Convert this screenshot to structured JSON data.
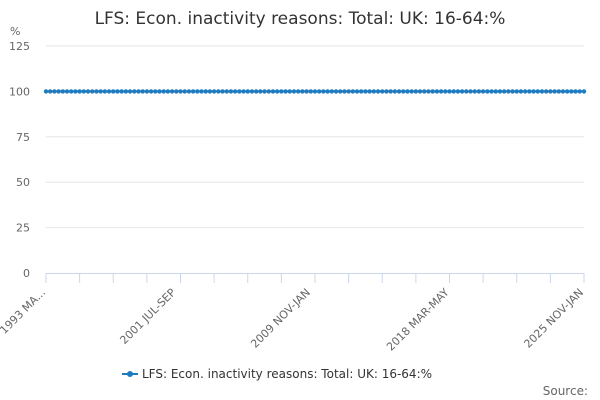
{
  "chart_data": {
    "type": "line",
    "title": "LFS: Econ. inactivity reasons: Total: UK: 16-64:%",
    "ylabel": "%",
    "ylim": [
      0,
      125
    ],
    "y_ticks": [
      "0",
      "25",
      "50",
      "75",
      "100",
      "125"
    ],
    "x_tick_labels": [
      "1993 MA...",
      "2001 JUL-SEP",
      "2009 NOV-JAN",
      "2018 MAR-MAY",
      "2025 NOV-JAN"
    ],
    "x_tick_positions": [
      0,
      31,
      63,
      96,
      128
    ],
    "point_count": 129,
    "series": [
      {
        "name": "LFS: Econ. inactivity reasons: Total: UK: 16-64:%",
        "value": 100,
        "color": "#1f7bbf"
      }
    ],
    "grid": true,
    "legend": "bottom",
    "source_label": "Source:"
  }
}
